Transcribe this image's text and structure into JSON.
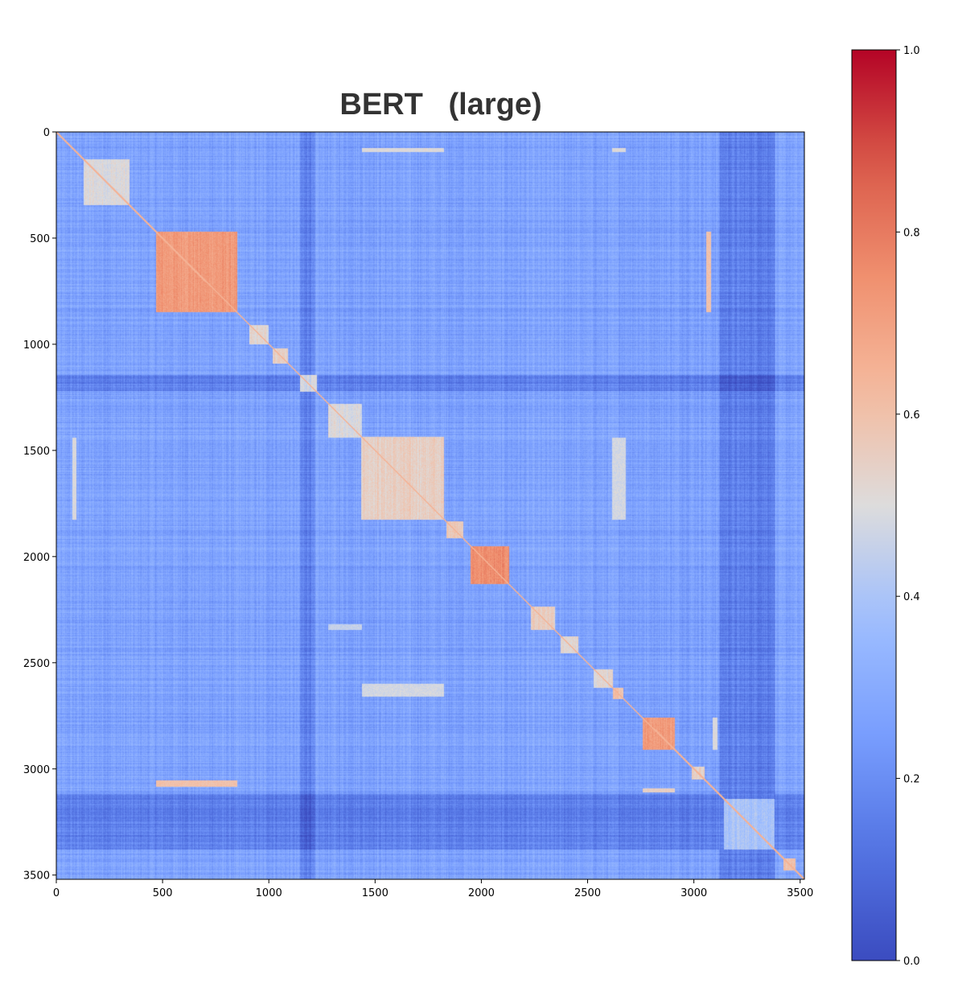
{
  "chart_data": {
    "type": "heatmap",
    "title": "BERT   (large)",
    "xlabel": "",
    "ylabel": "",
    "matrix_size": 3520,
    "x_ticks": [
      0,
      500,
      1000,
      1500,
      2000,
      2500,
      3000,
      3500
    ],
    "x_tick_labels": [
      "0",
      "500",
      "1000",
      "1500",
      "2000",
      "2500",
      "3000",
      "3500"
    ],
    "y_ticks": [
      0,
      500,
      1000,
      1500,
      2000,
      2500,
      3000,
      3500
    ],
    "y_tick_labels": [
      "0",
      "500",
      "1000",
      "1500",
      "2000",
      "2500",
      "3000",
      "3500"
    ],
    "xlim": [
      0,
      3520
    ],
    "ylim": [
      3520,
      0
    ],
    "colormap": "coolwarm",
    "colorbar": {
      "range": [
        0.0,
        1.0
      ],
      "ticks": [
        0.0,
        0.2,
        0.4,
        0.6,
        0.8,
        1.0
      ],
      "tick_labels": [
        "0.0",
        "0.2",
        "0.4",
        "0.6",
        "0.8",
        "1.0"
      ]
    },
    "background_value": 0.27,
    "diagonal_value": 0.65,
    "diagonal_blocks": [
      {
        "start": 130,
        "end": 345,
        "value": 0.5
      },
      {
        "start": 470,
        "end": 850,
        "value": 0.72
      },
      {
        "start": 910,
        "end": 1000,
        "value": 0.52
      },
      {
        "start": 1020,
        "end": 1090,
        "value": 0.55
      },
      {
        "start": 1145,
        "end": 1225,
        "value": 0.48
      },
      {
        "start": 1280,
        "end": 1440,
        "value": 0.5
      },
      {
        "start": 1435,
        "end": 1825,
        "value": 0.55
      },
      {
        "start": 1835,
        "end": 1915,
        "value": 0.58
      },
      {
        "start": 1950,
        "end": 2130,
        "value": 0.75
      },
      {
        "start": 2235,
        "end": 2345,
        "value": 0.55
      },
      {
        "start": 2375,
        "end": 2455,
        "value": 0.52
      },
      {
        "start": 2530,
        "end": 2620,
        "value": 0.52
      },
      {
        "start": 2620,
        "end": 2670,
        "value": 0.6
      },
      {
        "start": 2760,
        "end": 2910,
        "value": 0.72
      },
      {
        "start": 2990,
        "end": 3050,
        "value": 0.55
      },
      {
        "start": 3140,
        "end": 3380,
        "value": 0.4
      },
      {
        "start": 3420,
        "end": 3480,
        "value": 0.6
      }
    ],
    "off_diagonal_blocks": [
      {
        "rows": [
          75,
          95
        ],
        "cols": [
          1440,
          1825
        ],
        "value": 0.5
      },
      {
        "rows": [
          75,
          95
        ],
        "cols": [
          2615,
          2680
        ],
        "value": 0.5
      },
      {
        "rows": [
          470,
          850
        ],
        "cols": [
          3060,
          3080
        ],
        "value": 0.6
      },
      {
        "rows": [
          3055,
          3085
        ],
        "cols": [
          470,
          850
        ],
        "value": 0.6
      },
      {
        "rows": [
          1440,
          1825
        ],
        "cols": [
          75,
          95
        ],
        "value": 0.5
      },
      {
        "rows": [
          2600,
          2660
        ],
        "cols": [
          1440,
          1825
        ],
        "value": 0.48
      },
      {
        "rows": [
          1440,
          1825
        ],
        "cols": [
          2615,
          2680
        ],
        "value": 0.48
      },
      {
        "rows": [
          3090,
          3110
        ],
        "cols": [
          2760,
          2910
        ],
        "value": 0.55
      },
      {
        "rows": [
          2760,
          2910
        ],
        "cols": [
          3090,
          3110
        ],
        "value": 0.5
      },
      {
        "rows": [
          2320,
          2345
        ],
        "cols": [
          1280,
          1440
        ],
        "value": 0.45
      }
    ],
    "dark_bands": [
      {
        "start": 1145,
        "end": 1220,
        "value": 0.17
      },
      {
        "start": 3120,
        "end": 3380,
        "value": 0.16
      }
    ]
  }
}
